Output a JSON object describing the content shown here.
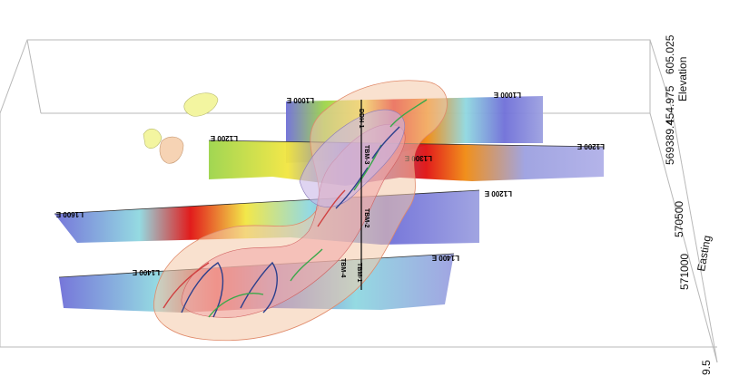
{
  "axis": {
    "elevation_top": "605.025",
    "elevation_title": "Elevation",
    "elevation_mid": "454.975",
    "northing": "569389.4",
    "easting_1": "570500",
    "easting_2": "571000",
    "easting_title": "Easting",
    "bottom_value": "9.5"
  },
  "sections": {
    "l1000_left": "L1000 E",
    "l1000_right": "L1000 E",
    "l1200_left": "L1200 E",
    "l1200_right": "L1200 E",
    "l1300_right": "L1300 E",
    "l1400_left": "L1400 E",
    "l1400_right": "L1400 E",
    "l1600_left": "L1600 E"
  },
  "drillholes": {
    "dh_top": "DDH-1",
    "dh_center_1": "TBM-3",
    "dh_center_2": "TBM-2",
    "dh_low_1": "TBM-1",
    "dh_low_2": "TBM-4"
  },
  "colors": {
    "high": "#e01010",
    "mid_high": "#f08a10",
    "mid": "#f2e640",
    "mid_low": "#9cd44a",
    "low_cyan": "#8fd8e0",
    "low": "#6f6fd8",
    "shell": "#f4c8a8"
  }
}
